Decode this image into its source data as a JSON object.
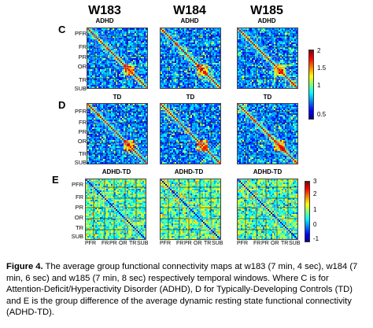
{
  "window_titles": [
    "W183",
    "W184",
    "W185"
  ],
  "rows": [
    {
      "letter": "C",
      "condition": "ADHD",
      "y_labels": [
        "PFR",
        "FR",
        "PR",
        "OR",
        "TR",
        "SUB"
      ],
      "colorbar_ticks": [
        "2",
        "1.5",
        "1",
        "0.5"
      ],
      "colormap": "jet"
    },
    {
      "letter": "D",
      "condition": "TD",
      "y_labels": [
        "PFR",
        "FR",
        "PR",
        "OR",
        "TR",
        "SUB"
      ],
      "colorbar_ticks": [],
      "colormap": "jet"
    },
    {
      "letter": "E",
      "condition": "ADHD-TD",
      "y_labels": [
        "PFR",
        "FR",
        "PR",
        "OR",
        "TR",
        "SUB"
      ],
      "x_labels": [
        "PFR",
        "FR",
        "PR",
        "OR",
        "TR",
        "SUB"
      ],
      "colorbar_ticks": [
        "3",
        "2",
        "1",
        "0",
        "-1"
      ],
      "colormap": "jet"
    }
  ],
  "caption": {
    "label": "Figure 4.",
    "text": " The average group functional connectivity maps at w183 (7 min, 4 sec), w184 (7 min, 6 sec) and w185 (7 min, 8 sec) respectively temporal windows. Where C is for Attention-Deficit/Hyperactivity Disorder (ADHD), D for Typically-Developing Controls (TD) and E is the group difference of the average dynamic resting state functional connectivity (ADHD-TD)."
  }
}
